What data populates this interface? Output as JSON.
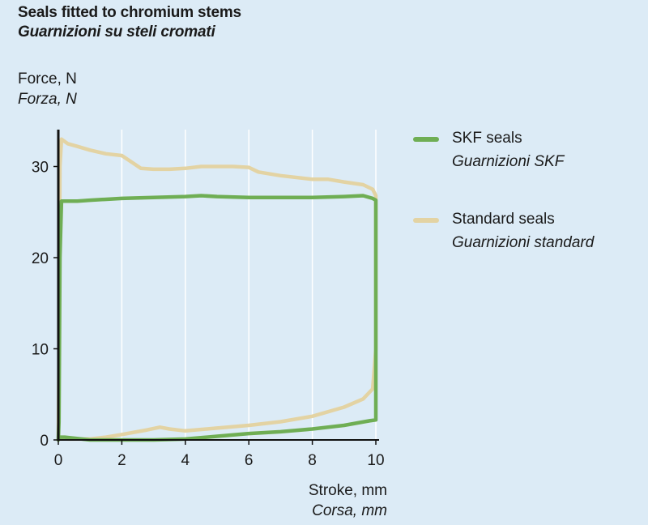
{
  "colors": {
    "skf": "#6fae54",
    "standard": "#e3d3a3",
    "background": "#dcebf6",
    "grid": "#ffffff",
    "axis": "#111111"
  },
  "chart_data": {
    "type": "line",
    "title": "Seals fitted to chromium stems",
    "subtitle": "Guarnizioni su steli cromati",
    "ylabel": "Force, N",
    "ylabel_it": "Forza, N",
    "xlabel": "Stroke, mm",
    "xlabel_it": "Corsa, mm",
    "xlim": [
      0,
      10
    ],
    "ylim": [
      0,
      34
    ],
    "xticks": [
      "0",
      "2",
      "4",
      "6",
      "8",
      "10"
    ],
    "yticks": [
      "0",
      "10",
      "20",
      "30"
    ],
    "grid": "vertical",
    "legend_position": "right",
    "series": [
      {
        "name": "SKF seals",
        "name_it": "Guarnizioni SKF",
        "color": "#6fae54",
        "outbound": [
          [
            0,
            0
          ],
          [
            0.02,
            2
          ],
          [
            0.05,
            20
          ],
          [
            0.1,
            26.2
          ],
          [
            0.3,
            26.2
          ],
          [
            0.6,
            26.2
          ],
          [
            1.0,
            26.3
          ],
          [
            2.0,
            26.5
          ],
          [
            3.0,
            26.6
          ],
          [
            4.0,
            26.7
          ],
          [
            4.5,
            26.8
          ],
          [
            5.0,
            26.7
          ],
          [
            6.0,
            26.6
          ],
          [
            7.0,
            26.6
          ],
          [
            8.0,
            26.6
          ],
          [
            9.0,
            26.7
          ],
          [
            9.6,
            26.8
          ],
          [
            9.9,
            26.5
          ],
          [
            10.0,
            26.3
          ]
        ],
        "return": [
          [
            10.0,
            26.3
          ],
          [
            10.0,
            20
          ],
          [
            10.0,
            10
          ],
          [
            10.0,
            2.2
          ],
          [
            9.8,
            2.1
          ],
          [
            9.0,
            1.6
          ],
          [
            8.0,
            1.2
          ],
          [
            7.0,
            0.9
          ],
          [
            6.0,
            0.7
          ],
          [
            5.0,
            0.4
          ],
          [
            4.0,
            0.1
          ],
          [
            3.0,
            0.0
          ],
          [
            2.0,
            0.0
          ],
          [
            1.0,
            0.0
          ],
          [
            0.5,
            0.2
          ],
          [
            0.2,
            0.3
          ],
          [
            0.05,
            0.3
          ],
          [
            0,
            0
          ]
        ]
      },
      {
        "name": "Standard seals",
        "name_it": "Guarnizioni standard",
        "color": "#e3d3a3",
        "outbound": [
          [
            0,
            0
          ],
          [
            0.02,
            8
          ],
          [
            0.05,
            30
          ],
          [
            0.1,
            33.0
          ],
          [
            0.3,
            32.5
          ],
          [
            0.6,
            32.2
          ],
          [
            1.0,
            31.8
          ],
          [
            1.5,
            31.4
          ],
          [
            2.0,
            31.2
          ],
          [
            2.3,
            30.5
          ],
          [
            2.6,
            29.8
          ],
          [
            3.0,
            29.7
          ],
          [
            3.5,
            29.7
          ],
          [
            4.0,
            29.8
          ],
          [
            4.5,
            30.0
          ],
          [
            5.0,
            30.0
          ],
          [
            5.5,
            30.0
          ],
          [
            6.0,
            29.9
          ],
          [
            6.3,
            29.4
          ],
          [
            7.0,
            29.0
          ],
          [
            8.0,
            28.6
          ],
          [
            8.5,
            28.6
          ],
          [
            9.0,
            28.3
          ],
          [
            9.6,
            28.0
          ],
          [
            9.9,
            27.5
          ],
          [
            10.0,
            26.8
          ]
        ],
        "return": [
          [
            10.0,
            26.8
          ],
          [
            10.0,
            20
          ],
          [
            10.0,
            10
          ],
          [
            9.9,
            5.6
          ],
          [
            9.6,
            4.5
          ],
          [
            9.0,
            3.6
          ],
          [
            8.0,
            2.6
          ],
          [
            7.0,
            2.0
          ],
          [
            6.0,
            1.6
          ],
          [
            5.0,
            1.3
          ],
          [
            4.0,
            1.0
          ],
          [
            3.5,
            1.2
          ],
          [
            3.2,
            1.4
          ],
          [
            2.8,
            1.1
          ],
          [
            2.0,
            0.6
          ],
          [
            1.5,
            0.3
          ],
          [
            1.0,
            0.1
          ],
          [
            0.6,
            0.1
          ],
          [
            0.3,
            0.1
          ],
          [
            0.05,
            0.2
          ],
          [
            0,
            0
          ]
        ]
      }
    ]
  }
}
